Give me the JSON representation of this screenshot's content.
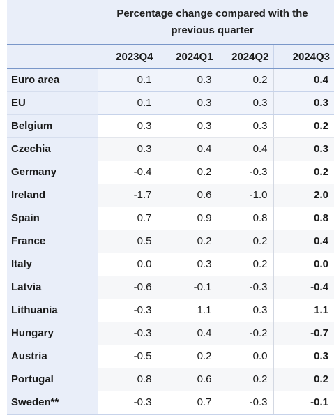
{
  "table": {
    "title": "Percentage change compared with the previous quarter",
    "columns": [
      "2023Q4",
      "2024Q1",
      "2024Q2",
      "2024Q3"
    ],
    "rows": [
      {
        "label": "Euro area",
        "values": [
          "0.1",
          "0.3",
          "0.2",
          "0.4"
        ]
      },
      {
        "label": "EU",
        "values": [
          "0.1",
          "0.3",
          "0.3",
          "0.3"
        ]
      },
      {
        "label": "Belgium",
        "values": [
          "0.3",
          "0.3",
          "0.3",
          "0.2"
        ]
      },
      {
        "label": "Czechia",
        "values": [
          "0.3",
          "0.4",
          "0.4",
          "0.3"
        ]
      },
      {
        "label": "Germany",
        "values": [
          "-0.4",
          "0.2",
          "-0.3",
          "0.2"
        ]
      },
      {
        "label": "Ireland",
        "values": [
          "-1.7",
          "0.6",
          "-1.0",
          "2.0"
        ]
      },
      {
        "label": "Spain",
        "values": [
          "0.7",
          "0.9",
          "0.8",
          "0.8"
        ]
      },
      {
        "label": "France",
        "values": [
          "0.5",
          "0.2",
          "0.2",
          "0.4"
        ]
      },
      {
        "label": "Italy",
        "values": [
          "0.0",
          "0.3",
          "0.2",
          "0.0"
        ]
      },
      {
        "label": "Latvia",
        "values": [
          "-0.6",
          "-0.1",
          "-0.3",
          "-0.4"
        ]
      },
      {
        "label": "Lithuania",
        "values": [
          "-0.3",
          "1.1",
          "0.3",
          "1.1"
        ]
      },
      {
        "label": "Hungary",
        "values": [
          "-0.3",
          "0.4",
          "-0.2",
          "-0.7"
        ]
      },
      {
        "label": "Austria",
        "values": [
          "-0.5",
          "0.2",
          "0.0",
          "0.3"
        ]
      },
      {
        "label": "Portugal",
        "values": [
          "0.8",
          "0.6",
          "0.2",
          "0.2"
        ]
      },
      {
        "label": "Sweden**",
        "values": [
          "-0.3",
          "0.7",
          "-0.3",
          "-0.1"
        ]
      }
    ]
  }
}
